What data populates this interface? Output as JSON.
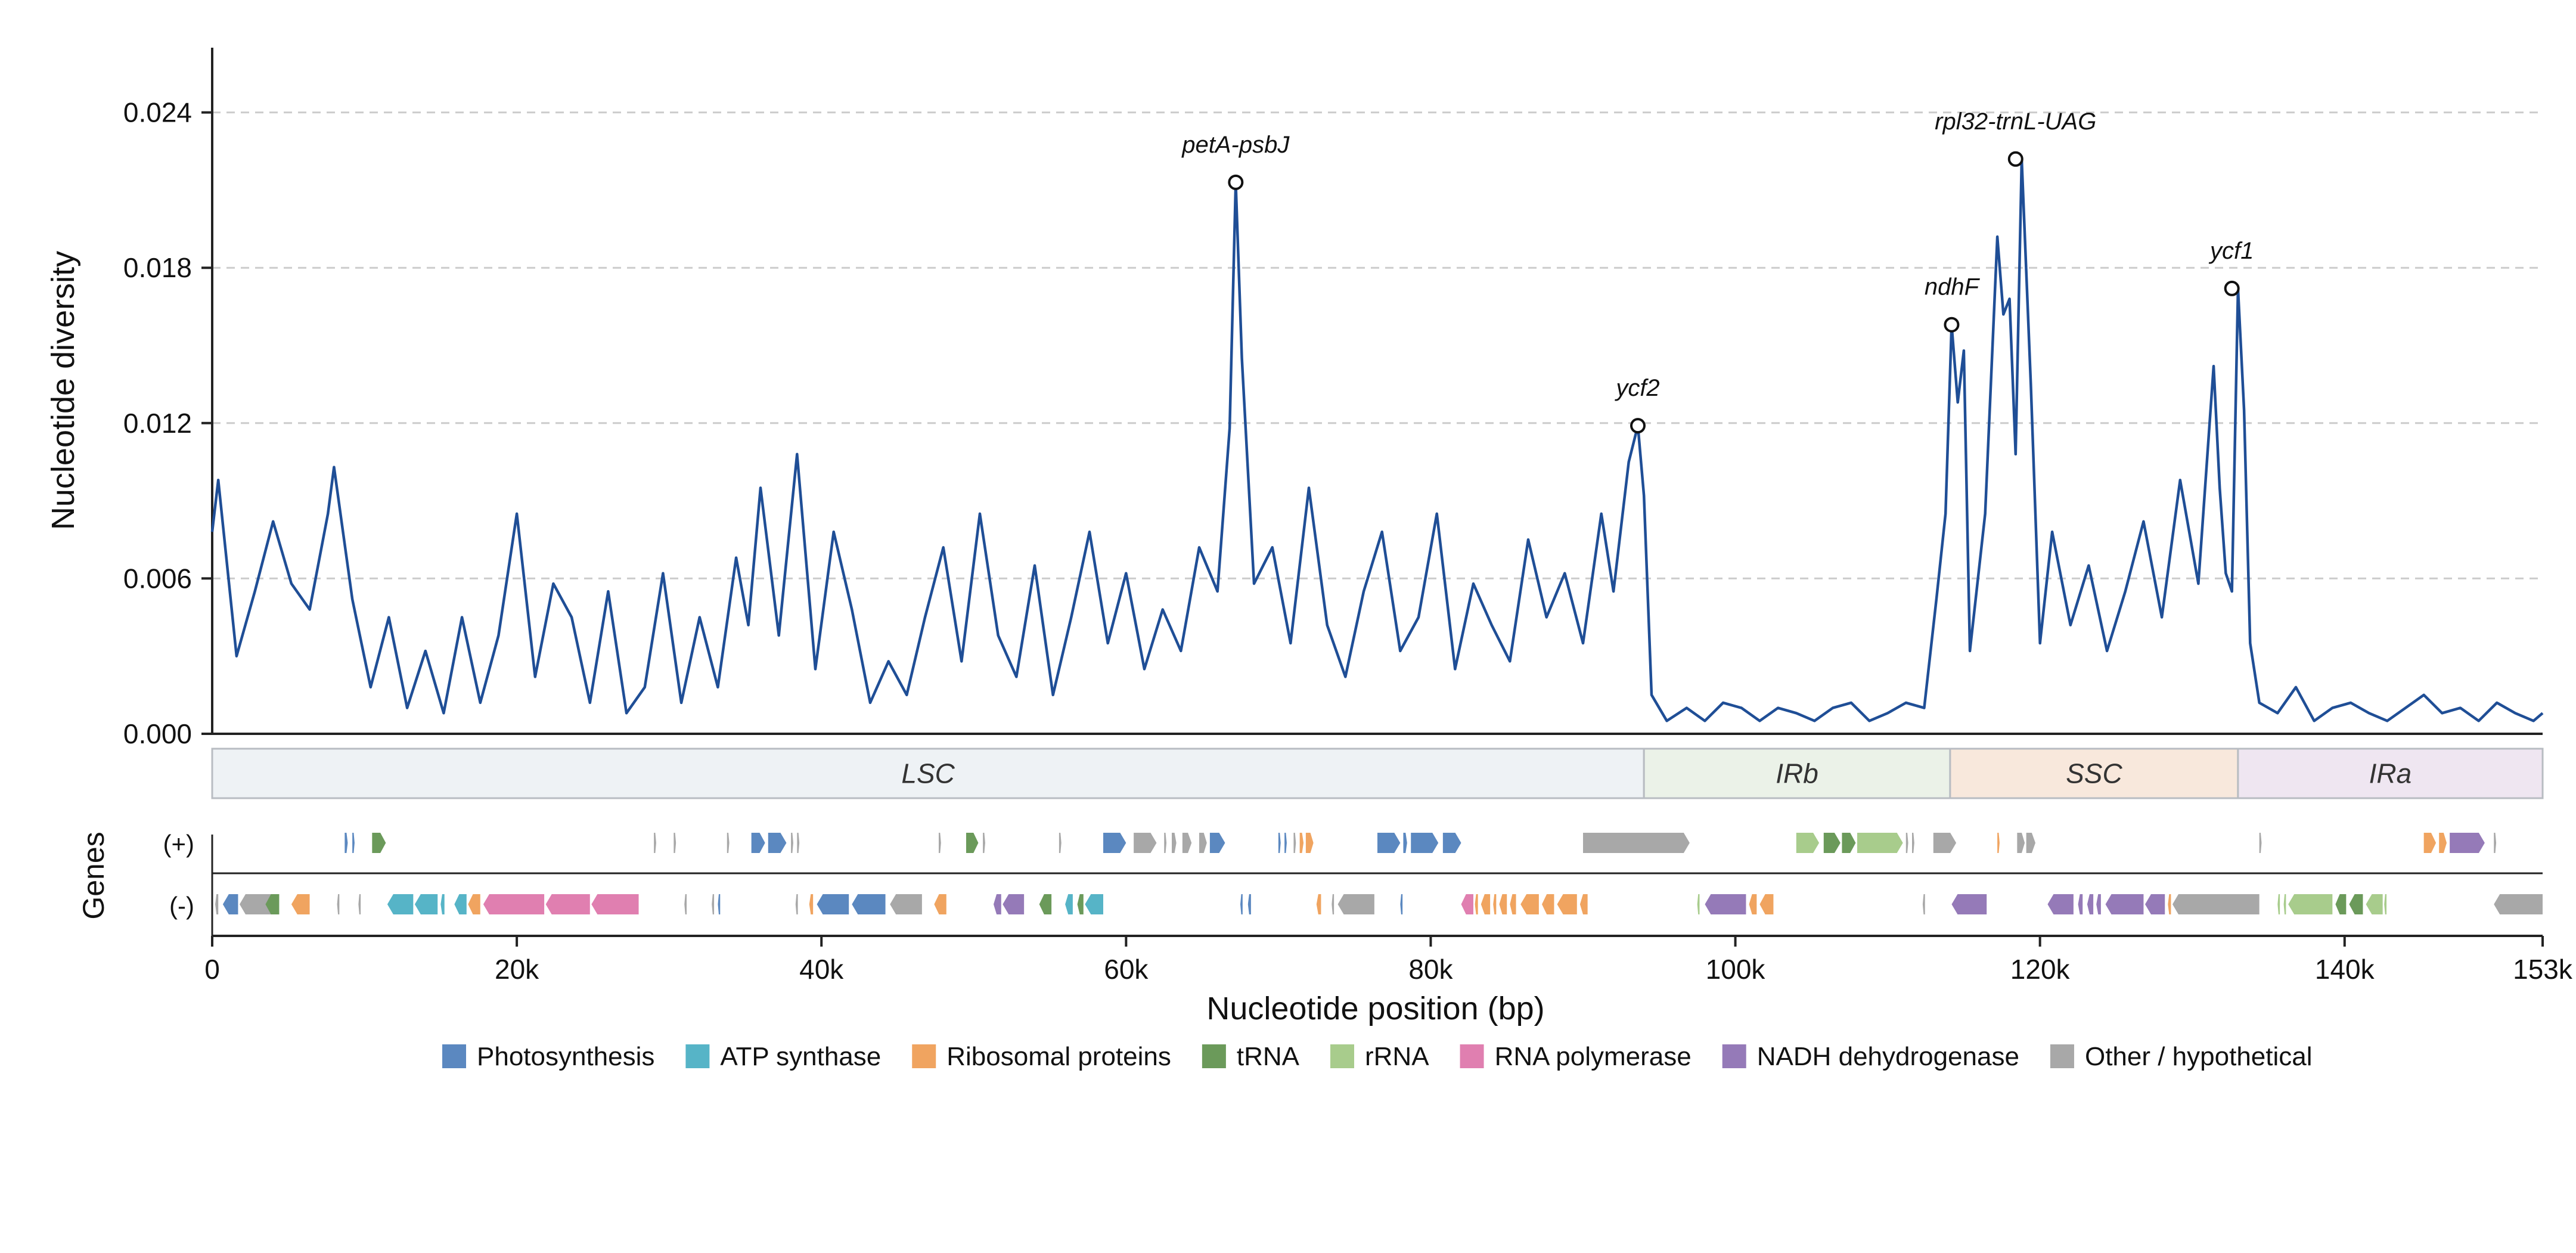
{
  "chart_data": {
    "type": "line",
    "title": "",
    "xlabel": "Nucleotide position (bp)",
    "ylabel": "Nucleotide diversity",
    "gene_track_label": "Genes",
    "strand_plus_label": "(+)",
    "strand_minus_label": "(-)",
    "xlim": [
      0,
      153000
    ],
    "ylim": [
      0,
      0.0265
    ],
    "x_ticks": [
      0,
      20000,
      40000,
      60000,
      80000,
      100000,
      120000,
      140000,
      153000
    ],
    "x_tick_labels": [
      "0",
      "20k",
      "40k",
      "60k",
      "80k",
      "100k",
      "120k",
      "140k",
      "153k"
    ],
    "y_ticks": [
      0.0,
      0.006,
      0.012,
      0.018,
      0.024
    ],
    "y_tick_labels": [
      "0.000",
      "0.006",
      "0.012",
      "0.018",
      "0.024"
    ],
    "grid": "horizontal dashed",
    "line_color": "#1f4e96",
    "series": [
      {
        "x": [
          0,
          400,
          1600,
          2800,
          4000,
          5200,
          6400,
          7600,
          8000,
          9200,
          10400,
          11600,
          12800,
          14000,
          15200,
          16400,
          17600,
          18800,
          20000,
          21200,
          22400,
          23600,
          24800,
          26000,
          27200,
          28400,
          29600,
          30800,
          32000,
          33200,
          34400,
          35200,
          36000,
          37200,
          38400,
          39600,
          40800,
          42000,
          43200,
          44400,
          45600,
          46800,
          48000,
          49200,
          50400,
          51600,
          52800,
          54000,
          55200,
          56400,
          57600,
          58800,
          60000,
          61200,
          62400,
          63600,
          64800,
          66000,
          66800,
          67200,
          67600,
          68400,
          69600,
          70800,
          72000,
          73200,
          74400,
          75600,
          76800,
          78000,
          79200,
          80400,
          81600,
          82800,
          84000,
          85200,
          86400,
          87600,
          88800,
          90000,
          91200,
          92000,
          93000,
          93600,
          94000,
          94500,
          95500,
          96800,
          98000,
          99200,
          100400,
          101600,
          102800,
          104000,
          105200,
          106400,
          107600,
          108800,
          110000,
          111200,
          112400,
          113200,
          113800,
          114200,
          114600,
          115000,
          115400,
          116400,
          117200,
          117600,
          118000,
          118400,
          118800,
          119400,
          120000,
          120800,
          122000,
          123200,
          124400,
          125600,
          126800,
          128000,
          129200,
          130400,
          131400,
          131800,
          132200,
          132600,
          133000,
          133400,
          133800,
          134400,
          135600,
          136800,
          138000,
          139200,
          140400,
          141600,
          142800,
          144000,
          145200,
          146400,
          147600,
          148800,
          150000,
          151200,
          152400,
          153000
        ],
        "y": [
          0.0078,
          0.0098,
          0.003,
          0.0055,
          0.0082,
          0.0058,
          0.0048,
          0.0085,
          0.0103,
          0.0052,
          0.0018,
          0.0045,
          0.001,
          0.0032,
          0.0008,
          0.0045,
          0.0012,
          0.0038,
          0.0085,
          0.0022,
          0.0058,
          0.0045,
          0.0012,
          0.0055,
          0.0008,
          0.0018,
          0.0062,
          0.0012,
          0.0045,
          0.0018,
          0.0068,
          0.0042,
          0.0095,
          0.0038,
          0.0108,
          0.0025,
          0.0078,
          0.0048,
          0.0012,
          0.0028,
          0.0015,
          0.0045,
          0.0072,
          0.0028,
          0.0085,
          0.0038,
          0.0022,
          0.0065,
          0.0015,
          0.0045,
          0.0078,
          0.0035,
          0.0062,
          0.0025,
          0.0048,
          0.0032,
          0.0072,
          0.0055,
          0.0118,
          0.0213,
          0.0145,
          0.0058,
          0.0072,
          0.0035,
          0.0095,
          0.0042,
          0.0022,
          0.0055,
          0.0078,
          0.0032,
          0.0045,
          0.0085,
          0.0025,
          0.0058,
          0.0042,
          0.0028,
          0.0075,
          0.0045,
          0.0062,
          0.0035,
          0.0085,
          0.0055,
          0.0105,
          0.0119,
          0.0092,
          0.0015,
          0.0005,
          0.001,
          0.0005,
          0.0012,
          0.001,
          0.0005,
          0.001,
          0.0008,
          0.0005,
          0.001,
          0.0012,
          0.0005,
          0.0008,
          0.0012,
          0.001,
          0.0052,
          0.0085,
          0.0158,
          0.0128,
          0.0148,
          0.0032,
          0.0085,
          0.0192,
          0.0162,
          0.0168,
          0.0108,
          0.0222,
          0.0135,
          0.0035,
          0.0078,
          0.0042,
          0.0065,
          0.0032,
          0.0055,
          0.0082,
          0.0045,
          0.0098,
          0.0058,
          0.0142,
          0.0095,
          0.0062,
          0.0055,
          0.0172,
          0.0125,
          0.0035,
          0.0012,
          0.0008,
          0.0018,
          0.0005,
          0.001,
          0.0012,
          0.0008,
          0.0005,
          0.001,
          0.0015,
          0.0008,
          0.001,
          0.0005,
          0.0012,
          0.0008,
          0.0005,
          0.0008
        ]
      }
    ],
    "annotations": [
      {
        "label": "petA-psbJ",
        "x": 67200,
        "y": 0.0213
      },
      {
        "label": "ycf2",
        "x": 93600,
        "y": 0.0119
      },
      {
        "label": "ndhF",
        "x": 114200,
        "y": 0.0158
      },
      {
        "label": "rpl32-trnL-UAG",
        "x": 118400,
        "y": 0.0222
      },
      {
        "label": "ycf1",
        "x": 132600,
        "y": 0.0172
      }
    ],
    "regions": [
      {
        "label": "LSC",
        "start": 0,
        "end": 94000,
        "color": "#eef2f5"
      },
      {
        "label": "IRb",
        "start": 94000,
        "end": 114100,
        "color": "#ebf2e8"
      },
      {
        "label": "SSC",
        "start": 114100,
        "end": 133000,
        "color": "#f8e8dc"
      },
      {
        "label": "IRa",
        "start": 133000,
        "end": 153000,
        "color": "#efe6f1"
      }
    ],
    "legend": {
      "placement": "bottom-center",
      "entries": [
        {
          "key": "photo",
          "label": "Photosynthesis",
          "color": "#5b88c0"
        },
        {
          "key": "atp",
          "label": "ATP synthase",
          "color": "#56b4c7"
        },
        {
          "key": "ribo",
          "label": "Ribosomal proteins",
          "color": "#f0a460"
        },
        {
          "key": "trna",
          "label": "tRNA",
          "color": "#6b9a5a"
        },
        {
          "key": "rrna",
          "label": "rRNA",
          "color": "#a8cc8c"
        },
        {
          "key": "rnapol",
          "label": "RNA polymerase",
          "color": "#e07fb0"
        },
        {
          "key": "ndh",
          "label": "NADH dehydrogenase",
          "color": "#957ab8"
        },
        {
          "key": "other",
          "label": "Other / hypothetical",
          "color": "#a8a8a8"
        }
      ]
    },
    "genes_plus": [
      {
        "start": 8700,
        "end": 8900,
        "cat": "photo"
      },
      {
        "start": 9200,
        "end": 9350,
        "cat": "photo"
      },
      {
        "start": 10500,
        "end": 11400,
        "cat": "trna"
      },
      {
        "start": 29000,
        "end": 29150,
        "cat": "other"
      },
      {
        "start": 30300,
        "end": 30450,
        "cat": "other"
      },
      {
        "start": 33800,
        "end": 33950,
        "cat": "other"
      },
      {
        "start": 35400,
        "end": 36300,
        "cat": "photo"
      },
      {
        "start": 36500,
        "end": 37700,
        "cat": "photo"
      },
      {
        "start": 38000,
        "end": 38150,
        "cat": "other"
      },
      {
        "start": 38400,
        "end": 38550,
        "cat": "other"
      },
      {
        "start": 47700,
        "end": 47850,
        "cat": "other"
      },
      {
        "start": 49500,
        "end": 50300,
        "cat": "trna"
      },
      {
        "start": 50600,
        "end": 50750,
        "cat": "other"
      },
      {
        "start": 55600,
        "end": 55750,
        "cat": "other"
      },
      {
        "start": 58500,
        "end": 60000,
        "cat": "photo"
      },
      {
        "start": 60500,
        "end": 62000,
        "cat": "other"
      },
      {
        "start": 62500,
        "end": 62650,
        "cat": "other"
      },
      {
        "start": 63000,
        "end": 63300,
        "cat": "other"
      },
      {
        "start": 63700,
        "end": 64300,
        "cat": "other"
      },
      {
        "start": 64800,
        "end": 65300,
        "cat": "other"
      },
      {
        "start": 65500,
        "end": 66500,
        "cat": "photo"
      },
      {
        "start": 70000,
        "end": 70150,
        "cat": "photo"
      },
      {
        "start": 70400,
        "end": 70550,
        "cat": "photo"
      },
      {
        "start": 71000,
        "end": 71150,
        "cat": "other"
      },
      {
        "start": 71400,
        "end": 71650,
        "cat": "ribo"
      },
      {
        "start": 71800,
        "end": 72300,
        "cat": "ribo"
      },
      {
        "start": 76500,
        "end": 78000,
        "cat": "photo"
      },
      {
        "start": 78200,
        "end": 78450,
        "cat": "photo"
      },
      {
        "start": 78700,
        "end": 80500,
        "cat": "photo"
      },
      {
        "start": 80800,
        "end": 82000,
        "cat": "photo"
      },
      {
        "start": 90000,
        "end": 97000,
        "cat": "other"
      },
      {
        "start": 104000,
        "end": 105500,
        "cat": "rrna"
      },
      {
        "start": 105800,
        "end": 106900,
        "cat": "trna"
      },
      {
        "start": 107000,
        "end": 107900,
        "cat": "trna"
      },
      {
        "start": 108000,
        "end": 111000,
        "cat": "rrna"
      },
      {
        "start": 111200,
        "end": 111350,
        "cat": "other"
      },
      {
        "start": 111600,
        "end": 111750,
        "cat": "other"
      },
      {
        "start": 113000,
        "end": 114500,
        "cat": "other"
      },
      {
        "start": 117200,
        "end": 117350,
        "cat": "ribo"
      },
      {
        "start": 118500,
        "end": 119000,
        "cat": "other"
      },
      {
        "start": 119100,
        "end": 119700,
        "cat": "other"
      },
      {
        "start": 134400,
        "end": 134550,
        "cat": "other"
      },
      {
        "start": 145200,
        "end": 146000,
        "cat": "ribo"
      },
      {
        "start": 146200,
        "end": 146700,
        "cat": "ribo"
      },
      {
        "start": 146900,
        "end": 149200,
        "cat": "ndh"
      },
      {
        "start": 149800,
        "end": 149950,
        "cat": "other"
      }
    ],
    "genes_minus": [
      {
        "start": 200,
        "end": 400,
        "cat": "other"
      },
      {
        "start": 700,
        "end": 1700,
        "cat": "photo"
      },
      {
        "start": 1800,
        "end": 4300,
        "cat": "other"
      },
      {
        "start": 3500,
        "end": 4400,
        "cat": "trna"
      },
      {
        "start": 5200,
        "end": 6400,
        "cat": "ribo"
      },
      {
        "start": 8200,
        "end": 8350,
        "cat": "other"
      },
      {
        "start": 9600,
        "end": 9750,
        "cat": "other"
      },
      {
        "start": 11500,
        "end": 13200,
        "cat": "atp"
      },
      {
        "start": 13300,
        "end": 14800,
        "cat": "atp"
      },
      {
        "start": 15000,
        "end": 15250,
        "cat": "atp"
      },
      {
        "start": 15900,
        "end": 16700,
        "cat": "atp"
      },
      {
        "start": 16800,
        "end": 17600,
        "cat": "ribo"
      },
      {
        "start": 17800,
        "end": 21800,
        "cat": "rnapol"
      },
      {
        "start": 21900,
        "end": 24800,
        "cat": "rnapol"
      },
      {
        "start": 24900,
        "end": 28000,
        "cat": "rnapol"
      },
      {
        "start": 31000,
        "end": 31150,
        "cat": "other"
      },
      {
        "start": 32800,
        "end": 32950,
        "cat": "other"
      },
      {
        "start": 33200,
        "end": 33350,
        "cat": "photo"
      },
      {
        "start": 38300,
        "end": 38450,
        "cat": "other"
      },
      {
        "start": 39200,
        "end": 39450,
        "cat": "ribo"
      },
      {
        "start": 39700,
        "end": 41800,
        "cat": "photo"
      },
      {
        "start": 42000,
        "end": 44200,
        "cat": "photo"
      },
      {
        "start": 44500,
        "end": 46600,
        "cat": "other"
      },
      {
        "start": 47400,
        "end": 48200,
        "cat": "ribo"
      },
      {
        "start": 51300,
        "end": 51800,
        "cat": "ndh"
      },
      {
        "start": 51900,
        "end": 53300,
        "cat": "ndh"
      },
      {
        "start": 54300,
        "end": 55100,
        "cat": "trna"
      },
      {
        "start": 56000,
        "end": 56500,
        "cat": "atp"
      },
      {
        "start": 56800,
        "end": 57200,
        "cat": "trna"
      },
      {
        "start": 57300,
        "end": 58500,
        "cat": "atp"
      },
      {
        "start": 67500,
        "end": 67650,
        "cat": "photo"
      },
      {
        "start": 68000,
        "end": 68200,
        "cat": "photo"
      },
      {
        "start": 72500,
        "end": 72800,
        "cat": "ribo"
      },
      {
        "start": 73500,
        "end": 73650,
        "cat": "other"
      },
      {
        "start": 73900,
        "end": 76300,
        "cat": "other"
      },
      {
        "start": 78000,
        "end": 78150,
        "cat": "photo"
      },
      {
        "start": 82000,
        "end": 82800,
        "cat": "rnapol"
      },
      {
        "start": 82900,
        "end": 83100,
        "cat": "ribo"
      },
      {
        "start": 83300,
        "end": 83900,
        "cat": "ribo"
      },
      {
        "start": 84100,
        "end": 84300,
        "cat": "ribo"
      },
      {
        "start": 84500,
        "end": 85000,
        "cat": "ribo"
      },
      {
        "start": 85200,
        "end": 85600,
        "cat": "ribo"
      },
      {
        "start": 85900,
        "end": 87100,
        "cat": "ribo"
      },
      {
        "start": 87300,
        "end": 88100,
        "cat": "ribo"
      },
      {
        "start": 88300,
        "end": 89600,
        "cat": "ribo"
      },
      {
        "start": 89800,
        "end": 90300,
        "cat": "ribo"
      },
      {
        "start": 97500,
        "end": 97650,
        "cat": "rrna"
      },
      {
        "start": 98000,
        "end": 100700,
        "cat": "ndh"
      },
      {
        "start": 100900,
        "end": 101400,
        "cat": "ribo"
      },
      {
        "start": 101600,
        "end": 102500,
        "cat": "ribo"
      },
      {
        "start": 112300,
        "end": 112450,
        "cat": "other"
      },
      {
        "start": 114200,
        "end": 116500,
        "cat": "ndh"
      },
      {
        "start": 120500,
        "end": 122200,
        "cat": "ndh"
      },
      {
        "start": 122500,
        "end": 122800,
        "cat": "ndh"
      },
      {
        "start": 123100,
        "end": 123500,
        "cat": "ndh"
      },
      {
        "start": 123700,
        "end": 124000,
        "cat": "ndh"
      },
      {
        "start": 124300,
        "end": 126800,
        "cat": "ndh"
      },
      {
        "start": 126900,
        "end": 128200,
        "cat": "ndh"
      },
      {
        "start": 128400,
        "end": 128600,
        "cat": "ribo"
      },
      {
        "start": 128700,
        "end": 134400,
        "cat": "other"
      },
      {
        "start": 135600,
        "end": 135750,
        "cat": "rrna"
      },
      {
        "start": 136000,
        "end": 136150,
        "cat": "rrna"
      },
      {
        "start": 136300,
        "end": 139200,
        "cat": "rrna"
      },
      {
        "start": 139400,
        "end": 140100,
        "cat": "trna"
      },
      {
        "start": 140300,
        "end": 141200,
        "cat": "trna"
      },
      {
        "start": 141400,
        "end": 142500,
        "cat": "rrna"
      },
      {
        "start": 142600,
        "end": 142750,
        "cat": "rrna"
      },
      {
        "start": 149800,
        "end": 153000,
        "cat": "other"
      }
    ]
  }
}
